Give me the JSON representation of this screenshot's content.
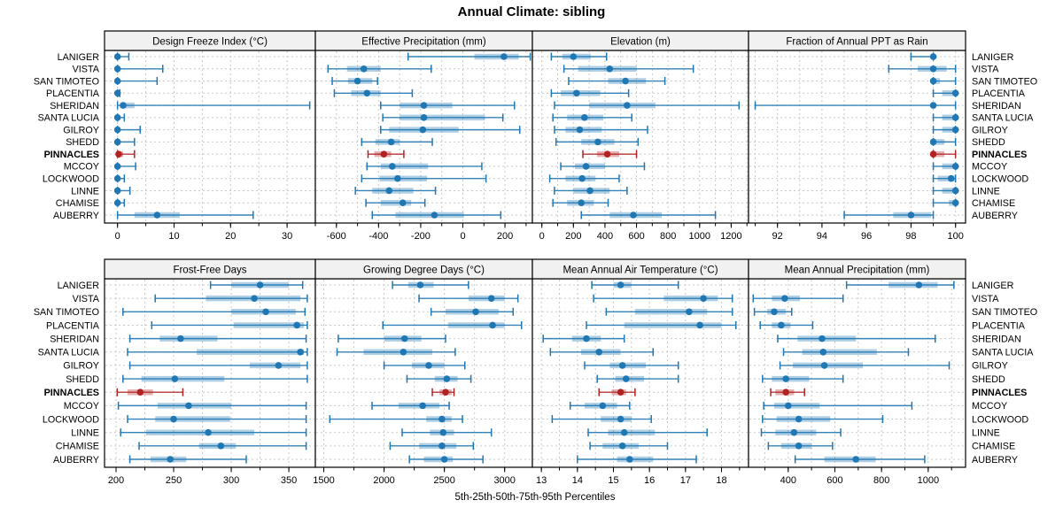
{
  "title": "Annual Climate: sibling",
  "footer": "5th-25th-50th-75th-95th Percentiles",
  "stations": [
    "LANIGER",
    "VISTA",
    "SAN TIMOTEO",
    "PLACENTIA",
    "SHERIDAN",
    "SANTA LUCIA",
    "GILROY",
    "SHEDD",
    "PINNACLES",
    "MCCOY",
    "LOCKWOOD",
    "LINNE",
    "CHAMISE",
    "AUBERRY"
  ],
  "highlight_station": "PINNACLES",
  "colors": {
    "series": "#1f77b4",
    "highlight": "#b22222",
    "grid": "#c9c9c9",
    "header_bg": "#f1f1f1",
    "border": "#000000",
    "text": "#000000"
  },
  "chart_data": [
    {
      "type": "dot-interval",
      "title": "Design Freeze Index (°C)",
      "xlim": [
        -2.3,
        35.0
      ],
      "xticks": [
        0,
        10,
        20,
        30
      ],
      "minor_step": 5,
      "percentiles": [
        5,
        25,
        50,
        75,
        95
      ],
      "values": [
        [
          0,
          0,
          0,
          0.3,
          2
        ],
        [
          0,
          0,
          0,
          0.3,
          8
        ],
        [
          0,
          0,
          0,
          0.2,
          7
        ],
        [
          0,
          0,
          0,
          0,
          0.4
        ],
        [
          0,
          0.4,
          1,
          3,
          34
        ],
        [
          0,
          0,
          0,
          0.2,
          1.2
        ],
        [
          0,
          0,
          0,
          0.3,
          4
        ],
        [
          0,
          0,
          0,
          0.5,
          3
        ],
        [
          0,
          0,
          0.2,
          1,
          3
        ],
        [
          0,
          0,
          0,
          0.3,
          3.2
        ],
        [
          0,
          0,
          0,
          0.2,
          1.2
        ],
        [
          0,
          0,
          0,
          0.3,
          2.2
        ],
        [
          0,
          0,
          0,
          0.3,
          1.2
        ],
        [
          0,
          3,
          7,
          11,
          24
        ]
      ]
    },
    {
      "type": "dot-interval",
      "title": "Effective Precipitation (mm)",
      "xlim": [
        -700,
        330
      ],
      "xticks": [
        -600,
        -400,
        -200,
        0,
        200
      ],
      "minor_step": 100,
      "percentiles": [
        5,
        25,
        50,
        75,
        95
      ],
      "values": [
        [
          -260,
          55,
          195,
          265,
          320
        ],
        [
          -640,
          -550,
          -470,
          -390,
          -150
        ],
        [
          -620,
          -545,
          -500,
          -430,
          -405
        ],
        [
          -610,
          -530,
          -455,
          -390,
          -240
        ],
        [
          -390,
          -300,
          -185,
          -50,
          245
        ],
        [
          -380,
          -300,
          -185,
          105,
          190
        ],
        [
          -390,
          -350,
          -190,
          -20,
          270
        ],
        [
          -480,
          -415,
          -340,
          -300,
          -145
        ],
        [
          -450,
          -420,
          -375,
          -340,
          -280
        ],
        [
          -455,
          -390,
          -335,
          -165,
          90
        ],
        [
          -480,
          -395,
          -310,
          -170,
          110
        ],
        [
          -510,
          -430,
          -350,
          -235,
          -130
        ],
        [
          -460,
          -390,
          -285,
          -245,
          -180
        ],
        [
          -430,
          -320,
          -135,
          5,
          180
        ]
      ]
    },
    {
      "type": "dot-interval",
      "title": "Elevation (m)",
      "xlim": [
        -60,
        1310
      ],
      "xticks": [
        0,
        200,
        400,
        600,
        800,
        1000,
        1200
      ],
      "minor_step": 100,
      "percentiles": [
        5,
        25,
        50,
        75,
        95
      ],
      "values": [
        [
          60,
          130,
          200,
          310,
          410
        ],
        [
          140,
          230,
          430,
          600,
          960
        ],
        [
          170,
          420,
          530,
          660,
          780
        ],
        [
          60,
          120,
          220,
          370,
          550
        ],
        [
          80,
          300,
          540,
          720,
          1250
        ],
        [
          70,
          160,
          270,
          390,
          570
        ],
        [
          80,
          150,
          240,
          380,
          670
        ],
        [
          90,
          250,
          355,
          460,
          610
        ],
        [
          260,
          350,
          415,
          490,
          600
        ],
        [
          120,
          210,
          280,
          400,
          650
        ],
        [
          50,
          150,
          255,
          340,
          490
        ],
        [
          80,
          200,
          305,
          430,
          540
        ],
        [
          70,
          160,
          250,
          330,
          420
        ],
        [
          250,
          430,
          580,
          760,
          1100
        ]
      ]
    },
    {
      "type": "dot-interval",
      "title": "Fraction of Annual PPT as Rain",
      "xlim": [
        90.7,
        100.45
      ],
      "xticks": [
        92,
        94,
        96,
        98,
        100
      ],
      "minor_step": 1,
      "percentiles": [
        5,
        25,
        50,
        75,
        95
      ],
      "values": [
        [
          98,
          98.9,
          99,
          99,
          99
        ],
        [
          97,
          98.3,
          99,
          99.6,
          100
        ],
        [
          99,
          99,
          99,
          99.3,
          100
        ],
        [
          99,
          99.4,
          100,
          100,
          100
        ],
        [
          91,
          98.9,
          99,
          99.1,
          100
        ],
        [
          99,
          99.4,
          100,
          100,
          100
        ],
        [
          99,
          99.4,
          100,
          100,
          100
        ],
        [
          99,
          99,
          99,
          99.5,
          100
        ],
        [
          99,
          99,
          99,
          99.5,
          100
        ],
        [
          99,
          99.4,
          100,
          100,
          100
        ],
        [
          99,
          99.2,
          99.8,
          100,
          100
        ],
        [
          99,
          99.4,
          100,
          100,
          100
        ],
        [
          99,
          99.7,
          100,
          100,
          100
        ],
        [
          95,
          97.2,
          98,
          98.9,
          99
        ]
      ]
    },
    {
      "type": "dot-interval",
      "title": "Frost-Free Days",
      "xlim": [
        190,
        373
      ],
      "xticks": [
        200,
        250,
        300,
        350
      ],
      "minor_step": 25,
      "percentiles": [
        5,
        25,
        50,
        75,
        95
      ],
      "values": [
        [
          282,
          300,
          325,
          350,
          362
        ],
        [
          234,
          278,
          320,
          360,
          366
        ],
        [
          206,
          300,
          330,
          356,
          364
        ],
        [
          231,
          302,
          357,
          363,
          366
        ],
        [
          212,
          238,
          256,
          288,
          365
        ],
        [
          210,
          270,
          360,
          363,
          366
        ],
        [
          212,
          316,
          341,
          360,
          366
        ],
        [
          206,
          222,
          251,
          294,
          366
        ],
        [
          201,
          210,
          221,
          232,
          258
        ],
        [
          202,
          236,
          263,
          300,
          365
        ],
        [
          210,
          234,
          250,
          299,
          365
        ],
        [
          204,
          226,
          280,
          320,
          365
        ],
        [
          220,
          272,
          291,
          304,
          365
        ],
        [
          212,
          230,
          247,
          261,
          313
        ]
      ]
    },
    {
      "type": "dot-interval",
      "title": "Growing Degree Days (°C)",
      "xlim": [
        1430,
        3230
      ],
      "xticks": [
        1500,
        2000,
        2500,
        3000
      ],
      "minor_step": 250,
      "percentiles": [
        5,
        25,
        50,
        75,
        95
      ],
      "values": [
        [
          2070,
          2200,
          2300,
          2410,
          2700
        ],
        [
          2290,
          2700,
          2890,
          3000,
          3110
        ],
        [
          2390,
          2510,
          2760,
          2950,
          3070
        ],
        [
          1990,
          2530,
          2900,
          3000,
          3140
        ],
        [
          1620,
          2000,
          2170,
          2310,
          2510
        ],
        [
          1610,
          1830,
          2160,
          2400,
          2590
        ],
        [
          2000,
          2230,
          2370,
          2500,
          2670
        ],
        [
          2190,
          2420,
          2520,
          2610,
          2720
        ],
        [
          2400,
          2460,
          2510,
          2560,
          2580
        ],
        [
          1900,
          2120,
          2320,
          2460,
          2540
        ],
        [
          1550,
          2350,
          2480,
          2560,
          2650
        ],
        [
          2150,
          2380,
          2490,
          2580,
          2890
        ],
        [
          2050,
          2290,
          2480,
          2600,
          2740
        ],
        [
          2210,
          2330,
          2500,
          2570,
          2820
        ]
      ]
    },
    {
      "type": "dot-interval",
      "title": "Mean Annual Air Temperature (°C)",
      "xlim": [
        12.75,
        18.75
      ],
      "xticks": [
        13,
        14,
        15,
        16,
        17,
        18
      ],
      "minor_step": 0.5,
      "percentiles": [
        5,
        25,
        50,
        75,
        95
      ],
      "values": [
        [
          14.4,
          15.0,
          15.2,
          15.5,
          16.8
        ],
        [
          14.45,
          16.4,
          17.5,
          17.9,
          18.3
        ],
        [
          14.8,
          15.6,
          17.1,
          17.6,
          18.3
        ],
        [
          14.25,
          15.3,
          17.4,
          18.0,
          18.4
        ],
        [
          13.05,
          13.85,
          14.25,
          14.65,
          15.3
        ],
        [
          13.25,
          14.1,
          14.6,
          15.2,
          16.1
        ],
        [
          14.2,
          14.9,
          15.25,
          15.9,
          16.8
        ],
        [
          14.55,
          15.05,
          15.35,
          15.85,
          16.8
        ],
        [
          14.6,
          14.95,
          15.2,
          15.35,
          15.6
        ],
        [
          13.8,
          14.2,
          14.7,
          15.1,
          15.45
        ],
        [
          13.3,
          14.65,
          15.2,
          15.5,
          16.05
        ],
        [
          14.3,
          14.85,
          15.3,
          16.15,
          17.6
        ],
        [
          14.35,
          14.7,
          15.25,
          15.7,
          16.5
        ],
        [
          14.0,
          15.1,
          15.45,
          16.1,
          17.3
        ]
      ]
    },
    {
      "type": "dot-interval",
      "title": "Mean Annual Precipitation (mm)",
      "xlim": [
        230,
        1160
      ],
      "xticks": [
        400,
        600,
        800,
        1000
      ],
      "minor_step": 100,
      "percentiles": [
        5,
        25,
        50,
        75,
        95
      ],
      "values": [
        [
          650,
          830,
          960,
          1040,
          1110
        ],
        [
          250,
          330,
          385,
          450,
          635
        ],
        [
          255,
          310,
          340,
          390,
          415
        ],
        [
          280,
          330,
          370,
          410,
          505
        ],
        [
          355,
          440,
          545,
          690,
          1030
        ],
        [
          380,
          460,
          550,
          780,
          915
        ],
        [
          365,
          420,
          555,
          720,
          1090
        ],
        [
          290,
          330,
          390,
          490,
          635
        ],
        [
          325,
          345,
          390,
          425,
          470
        ],
        [
          295,
          340,
          400,
          535,
          930
        ],
        [
          290,
          350,
          445,
          580,
          805
        ],
        [
          285,
          345,
          425,
          520,
          625
        ],
        [
          315,
          370,
          445,
          500,
          590
        ],
        [
          430,
          555,
          690,
          775,
          985
        ]
      ]
    }
  ]
}
